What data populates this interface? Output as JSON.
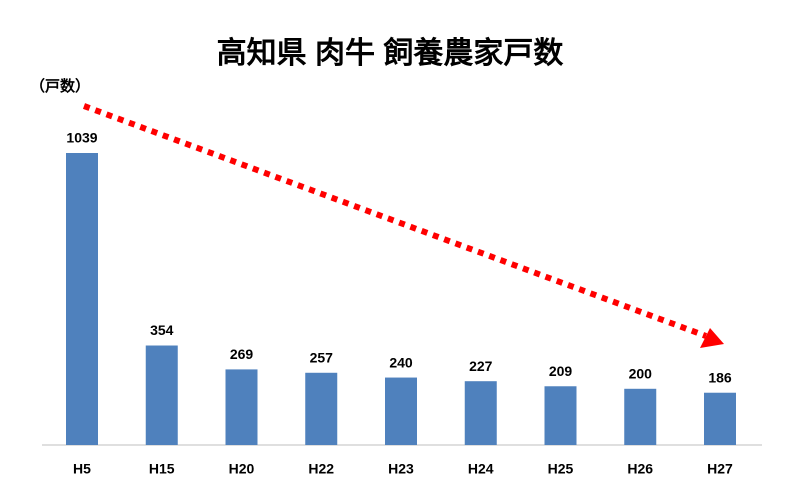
{
  "chart_data": {
    "type": "bar",
    "title": "高知県 肉牛 飼養農家戸数",
    "unit_label": "（戸数）",
    "categories": [
      "H5",
      "H15",
      "H20",
      "H22",
      "H23",
      "H24",
      "H25",
      "H26",
      "H27"
    ],
    "values": [
      1039,
      354,
      269,
      257,
      240,
      227,
      209,
      200,
      186
    ],
    "color": "#4f81bd"
  }
}
